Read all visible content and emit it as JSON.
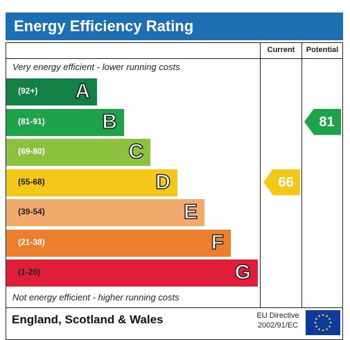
{
  "title": "Energy Efficiency Rating",
  "columns": {
    "current": "Current",
    "potential": "Potential"
  },
  "notes": {
    "top": "Very energy efficient - lower running costs",
    "bottom": "Not energy efficient - higher running costs"
  },
  "bands": [
    {
      "range": "(92+)",
      "letter": "A",
      "color": "#138046"
    },
    {
      "range": "(81-91)",
      "letter": "B",
      "color": "#1fa34a"
    },
    {
      "range": "(69-80)",
      "letter": "C",
      "color": "#8cc03f"
    },
    {
      "range": "(55-68)",
      "letter": "D",
      "color": "#f3c818"
    },
    {
      "range": "(39-54)",
      "letter": "E",
      "color": "#f0aa6c"
    },
    {
      "range": "(21-38)",
      "letter": "F",
      "color": "#ec7e2c"
    },
    {
      "range": "(1-20)",
      "letter": "G",
      "color": "#e11e3a"
    }
  ],
  "ratings": {
    "current": {
      "value": "66",
      "band": "D",
      "color": "#f3c818"
    },
    "potential": {
      "value": "81",
      "band": "B",
      "color": "#1fa34a"
    }
  },
  "footer": {
    "region": "England, Scotland & Wales",
    "directive_line1": "EU Directive",
    "directive_line2": "2002/91/EC"
  }
}
